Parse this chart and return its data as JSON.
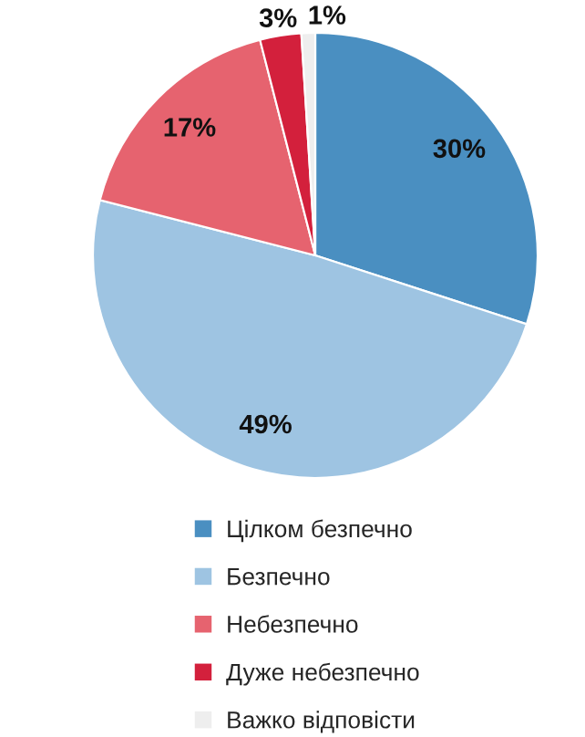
{
  "chart_data": {
    "type": "pie",
    "categories": [
      "Цілком безпечно",
      "Безпечно",
      "Небезпечно",
      "Дуже небезпечно",
      "Важко відповісти"
    ],
    "values": [
      30,
      49,
      17,
      3,
      1
    ],
    "colors": [
      "#4a8fc1",
      "#9ec4e2",
      "#e6636f",
      "#d3203c",
      "#eeeeee"
    ],
    "value_labels": [
      "30%",
      "49%",
      "17%",
      "3%",
      "1%"
    ],
    "legend": "bottom"
  }
}
